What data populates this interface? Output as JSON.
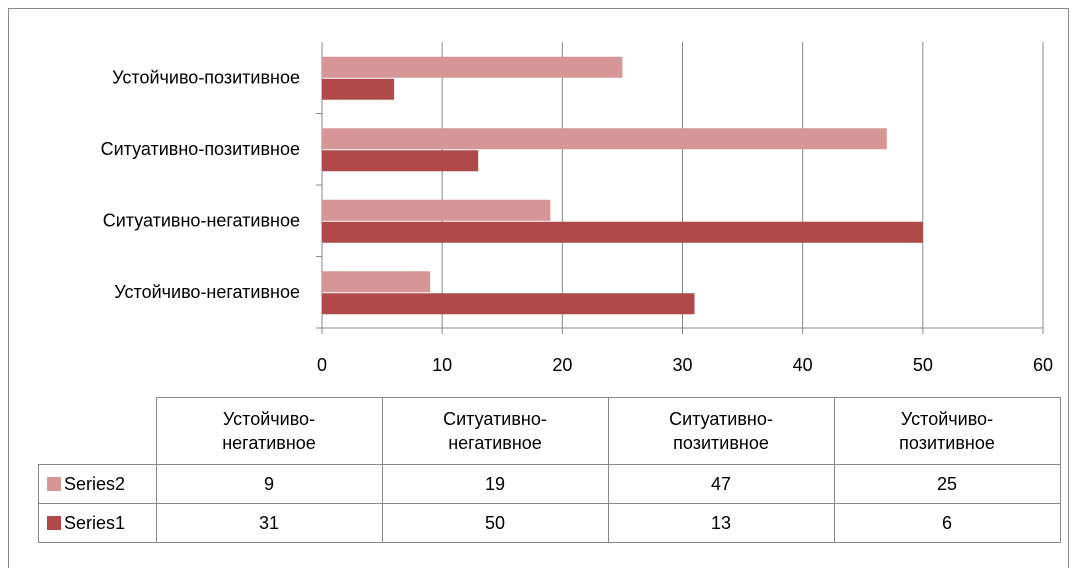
{
  "chart_data": {
    "type": "bar",
    "orientation": "horizontal",
    "categories": [
      "Устойчиво-негативное",
      "Ситуативно-негативное",
      "Ситуативно-позитивное",
      "Устойчиво-позитивное"
    ],
    "series": [
      {
        "name": "Series1",
        "color": "#b04a4a",
        "values": [
          31,
          50,
          13,
          6
        ]
      },
      {
        "name": "Series2",
        "color": "#d59695",
        "values": [
          9,
          19,
          47,
          25
        ]
      }
    ],
    "xlim": [
      0,
      60
    ],
    "xticks": [
      0,
      10,
      20,
      30,
      40,
      50,
      60
    ],
    "grid": true,
    "data_table": true
  }
}
